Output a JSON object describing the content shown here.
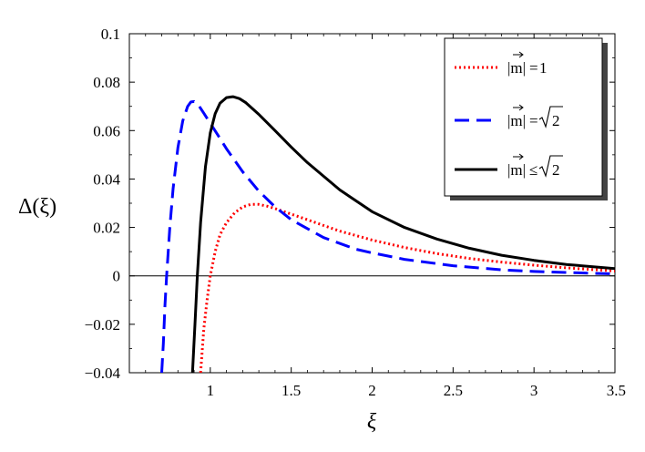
{
  "chart_data": {
    "type": "line",
    "title": "",
    "xlabel": "ξ",
    "ylabel": "Δ(ξ)",
    "xlim": [
      0.5,
      3.5
    ],
    "ylim": [
      -0.04,
      0.1
    ],
    "x_ticks": [
      {
        "value": 1,
        "label": "1"
      },
      {
        "value": 1.5,
        "label": "1.5"
      },
      {
        "value": 2,
        "label": "2"
      },
      {
        "value": 2.5,
        "label": "2.5"
      },
      {
        "value": 3,
        "label": "3"
      },
      {
        "value": 3.5,
        "label": "3.5"
      }
    ],
    "y_ticks": [
      {
        "value": -0.04,
        "label": "−0.04"
      },
      {
        "value": -0.02,
        "label": "−0.02"
      },
      {
        "value": 0,
        "label": "0"
      },
      {
        "value": 0.02,
        "label": "0.02"
      },
      {
        "value": 0.04,
        "label": "0.04"
      },
      {
        "value": 0.06,
        "label": "0.06"
      },
      {
        "value": 0.08,
        "label": "0.08"
      },
      {
        "value": 0.1,
        "label": "0.1"
      }
    ],
    "grid": false,
    "zero_line": true,
    "legend_position": "top-right",
    "series": [
      {
        "name": "|m⃗|=1",
        "legend": {
          "lhs": "|m|",
          "rel": "=",
          "rhs": "1",
          "sqrt": false
        },
        "color": "#ff0000",
        "style": "dotted",
        "x": [
          0.94,
          0.96,
          0.98,
          1.0,
          1.03,
          1.06,
          1.1,
          1.15,
          1.2,
          1.25,
          1.3,
          1.35,
          1.4,
          1.5,
          1.6,
          1.7,
          1.8,
          2.0,
          2.2,
          2.4,
          2.6,
          2.8,
          3.0,
          3.2,
          3.5
        ],
        "y": [
          -0.04,
          -0.022,
          -0.01,
          0.0,
          0.01,
          0.017,
          0.022,
          0.026,
          0.0285,
          0.0295,
          0.0295,
          0.0288,
          0.0278,
          0.0255,
          0.0232,
          0.0208,
          0.0185,
          0.0148,
          0.0117,
          0.0092,
          0.0072,
          0.0057,
          0.0044,
          0.0033,
          0.002
        ]
      },
      {
        "name": "|m⃗|=√2",
        "legend": {
          "lhs": "|m|",
          "rel": "=",
          "rhs": "2",
          "sqrt": true
        },
        "color": "#0000ff",
        "style": "dashed",
        "x": [
          0.7,
          0.71,
          0.72,
          0.73,
          0.75,
          0.77,
          0.8,
          0.83,
          0.86,
          0.88,
          0.9,
          0.93,
          0.96,
          1.0,
          1.05,
          1.1,
          1.2,
          1.3,
          1.4,
          1.5,
          1.7,
          1.9,
          2.0,
          2.2,
          2.5,
          2.8,
          3.0,
          3.5
        ],
        "y": [
          -0.04,
          -0.028,
          -0.012,
          0.0,
          0.02,
          0.036,
          0.053,
          0.064,
          0.07,
          0.0718,
          0.072,
          0.0702,
          0.0672,
          0.063,
          0.0578,
          0.0525,
          0.043,
          0.035,
          0.0285,
          0.0232,
          0.0158,
          0.011,
          0.0095,
          0.0068,
          0.0042,
          0.0025,
          0.0018,
          0.0008
        ]
      },
      {
        "name": "|m⃗|≤√2",
        "legend": {
          "lhs": "|m|",
          "rel": "≤",
          "rhs": "2",
          "sqrt": true
        },
        "color": "#000000",
        "style": "solid",
        "x": [
          0.89,
          0.905,
          0.92,
          0.94,
          0.97,
          1.0,
          1.03,
          1.06,
          1.1,
          1.14,
          1.18,
          1.22,
          1.3,
          1.4,
          1.5,
          1.6,
          1.8,
          2.0,
          2.2,
          2.4,
          2.6,
          2.8,
          3.0,
          3.2,
          3.5
        ],
        "y": [
          -0.04,
          -0.02,
          0.0,
          0.022,
          0.045,
          0.059,
          0.067,
          0.0713,
          0.0736,
          0.074,
          0.0732,
          0.0715,
          0.0667,
          0.06,
          0.0532,
          0.0468,
          0.0355,
          0.0265,
          0.02,
          0.0152,
          0.0114,
          0.0085,
          0.0064,
          0.0047,
          0.003
        ]
      }
    ]
  }
}
